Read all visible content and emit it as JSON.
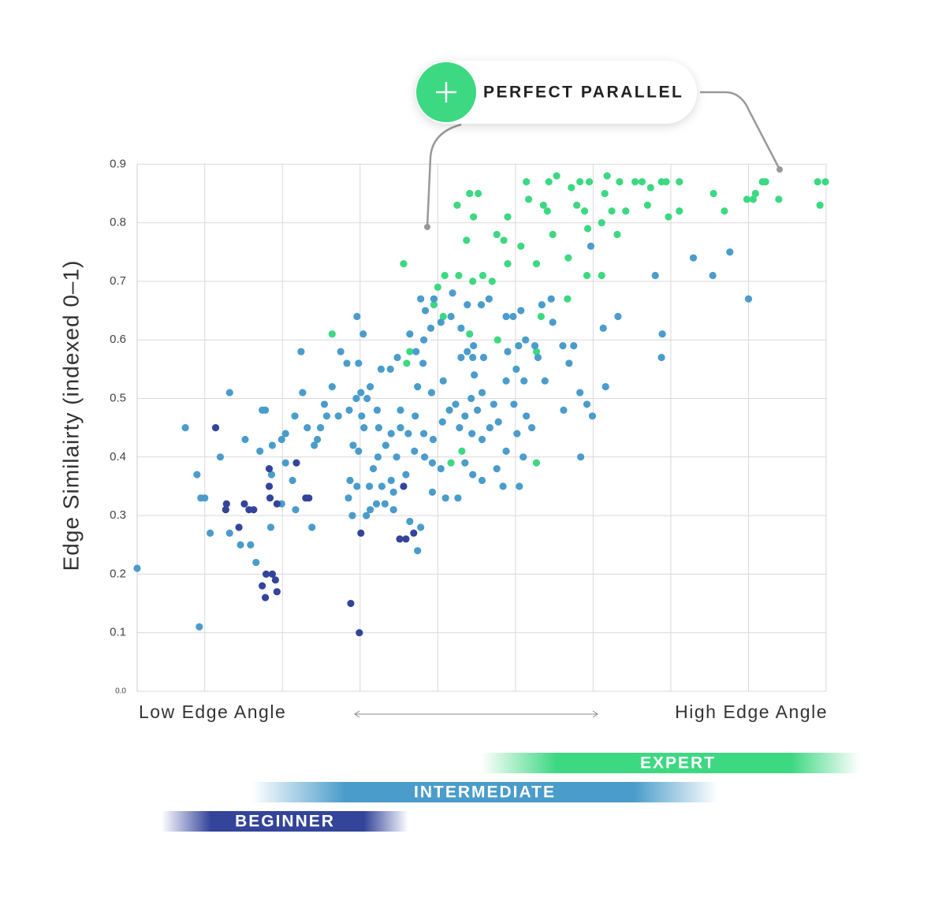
{
  "chart_data": {
    "type": "scatter",
    "y_label": "Edge Similairty (indexed 0–1)",
    "x_label_low": "Low Edge Angle",
    "x_label_high": "High Edge Angle",
    "annotation": "PERFECT PARALLEL",
    "xlim": [
      -0.87,
      8
    ],
    "xticks": [
      0,
      1,
      2,
      3,
      4,
      5,
      6,
      7,
      8
    ],
    "ylim": [
      0,
      0.9
    ],
    "yticks": [
      {
        "value": 0,
        "label": "0.0"
      },
      0.1,
      0.2,
      0.3,
      0.4,
      0.5,
      0.6,
      0.7,
      0.8,
      0.9
    ],
    "grid": true,
    "series": [
      {
        "name": "EXPERT",
        "color": "#3dd882",
        "x": [
          3.41,
          3.52,
          4.14,
          4.43,
          4.53,
          4.72,
          4.83,
          4.95,
          5.18,
          5.34,
          5.54,
          5.63,
          5.74,
          5.88,
          5.94,
          6.11,
          6.55,
          6.98,
          7.09,
          7.18,
          7.22,
          7.39,
          7.89,
          7.99,
          7.92,
          3.25,
          3.46,
          3.9,
          4.17,
          4.36,
          4.41,
          4.79,
          4.89,
          5.15,
          5.24,
          5.42,
          5.7,
          5.97,
          6.11,
          6.69,
          7.06,
          3.85,
          3.76,
          3.37,
          3.58,
          3.9,
          4.07,
          4.27,
          4.48,
          4.68,
          4.93,
          5.11,
          5.31,
          4.92,
          5.11,
          3.09,
          3.27,
          3.45,
          3.7,
          2.56,
          3.0,
          2.95,
          3.07,
          2.64,
          2.6,
          1.64,
          3.31,
          3.17,
          4.27,
          3.77,
          4.67,
          4.33,
          4.27,
          3.41
        ],
        "values": [
          0.85,
          0.85,
          0.87,
          0.87,
          0.88,
          0.86,
          0.87,
          0.87,
          0.88,
          0.87,
          0.87,
          0.87,
          0.86,
          0.87,
          0.87,
          0.87,
          0.85,
          0.84,
          0.85,
          0.87,
          0.87,
          0.84,
          0.87,
          0.87,
          0.83,
          0.83,
          0.81,
          0.81,
          0.84,
          0.83,
          0.82,
          0.83,
          0.82,
          0.85,
          0.82,
          0.82,
          0.83,
          0.81,
          0.82,
          0.82,
          0.84,
          0.77,
          0.78,
          0.77,
          0.71,
          0.73,
          0.76,
          0.73,
          0.78,
          0.74,
          0.79,
          0.8,
          0.78,
          0.71,
          0.71,
          0.71,
          0.71,
          0.7,
          0.7,
          0.73,
          0.69,
          0.66,
          0.64,
          0.58,
          0.56,
          0.61,
          0.41,
          0.39,
          0.39,
          0.6,
          0.67,
          0.64,
          0.58,
          0.61
        ]
      },
      {
        "name": "INTERMEDIATE",
        "color": "#4a9ccb",
        "x": [
          4.97,
          6.29,
          6.76,
          5.8,
          6.54,
          7.0,
          5.89,
          5.88,
          5.13,
          5.32,
          5.16,
          4.84,
          4.99,
          4.92,
          4.62,
          4.38,
          4.29,
          4.11,
          4.01,
          3.88,
          3.98,
          3.72,
          3.57,
          3.47,
          3.45,
          3.38,
          3.3,
          3.17,
          3.04,
          2.91,
          2.82,
          2.72,
          2.64,
          2.48,
          2.39,
          2.27,
          2.13,
          2.01,
          1.95,
          1.86,
          1.72,
          1.57,
          1.45,
          1.32,
          1.16,
          1.04,
          0.99,
          0.87,
          0.74,
          0.78,
          0.52,
          0.32,
          0.2,
          -0.25,
          -0.1,
          -0.05,
          0.0,
          0.07,
          -0.07,
          -0.87,
          0.46,
          0.59,
          0.66,
          0.85,
          0.99,
          1.04,
          1.13,
          1.26,
          1.24,
          1.41,
          1.49,
          1.54,
          1.64,
          1.75,
          1.83,
          1.96,
          2.04,
          1.91,
          1.98,
          1.87,
          1.85,
          1.9,
          2.08,
          2.21,
          2.32,
          2.43,
          2.43,
          2.28,
          2.17,
          2.23,
          2.33,
          2.4,
          2.52,
          2.62,
          2.71,
          2.82,
          2.94,
          3.06,
          3.15,
          3.23,
          3.28,
          3.35,
          3.44,
          3.57,
          3.67,
          3.78,
          3.88,
          4.02,
          4.14,
          4.21,
          3.76,
          3.57,
          3.45,
          3.35,
          3.26,
          3.1,
          2.93,
          2.78,
          2.74,
          2.59,
          2.4,
          2.47,
          2.7,
          2.83,
          2.74,
          2.92,
          3.07,
          3.3,
          3.46,
          3.59,
          3.9,
          4.04,
          4.07,
          4.13,
          4.25,
          4.34,
          4.48,
          4.61,
          4.69,
          4.75,
          4.46,
          4.83,
          3.19,
          3.38,
          3.56,
          3.66,
          3.88,
          3.97,
          3.43,
          3.51,
          2.09,
          2.22,
          2.05,
          1.98,
          2.02,
          2.24,
          2.52,
          2.81,
          2.84,
          2.95,
          2.78,
          1.96,
          2.12,
          2.64,
          2.93,
          3.04,
          3.84,
          4.05,
          4.1,
          2.13,
          0.71,
          0.86,
          1.17,
          1.38,
          0.32
        ],
        "values": [
          0.76,
          0.74,
          0.75,
          0.71,
          0.71,
          0.67,
          0.61,
          0.57,
          0.62,
          0.64,
          0.52,
          0.4,
          0.47,
          0.49,
          0.48,
          0.53,
          0.57,
          0.53,
          0.55,
          0.53,
          0.49,
          0.49,
          0.51,
          0.54,
          0.57,
          0.58,
          0.62,
          0.64,
          0.63,
          0.62,
          0.6,
          0.58,
          0.61,
          0.57,
          0.55,
          0.55,
          0.52,
          0.51,
          0.5,
          0.48,
          0.47,
          0.47,
          0.43,
          0.45,
          0.47,
          0.44,
          0.43,
          0.42,
          0.48,
          0.48,
          0.43,
          0.51,
          0.4,
          0.45,
          0.37,
          0.33,
          0.33,
          0.27,
          0.11,
          0.21,
          0.25,
          0.25,
          0.22,
          0.28,
          0.32,
          0.39,
          0.36,
          0.51,
          0.58,
          0.42,
          0.45,
          0.49,
          0.52,
          0.58,
          0.56,
          0.64,
          0.61,
          0.42,
          0.41,
          0.36,
          0.33,
          0.3,
          0.3,
          0.32,
          0.32,
          0.31,
          0.34,
          0.35,
          0.38,
          0.4,
          0.42,
          0.44,
          0.45,
          0.44,
          0.47,
          0.44,
          0.43,
          0.46,
          0.48,
          0.49,
          0.45,
          0.47,
          0.44,
          0.43,
          0.45,
          0.46,
          0.41,
          0.44,
          0.47,
          0.45,
          0.38,
          0.36,
          0.37,
          0.39,
          0.33,
          0.33,
          0.34,
          0.28,
          0.24,
          0.37,
          0.36,
          0.4,
          0.41,
          0.4,
          0.52,
          0.51,
          0.53,
          0.57,
          0.59,
          0.57,
          0.58,
          0.59,
          0.65,
          0.6,
          0.59,
          0.66,
          0.63,
          0.59,
          0.56,
          0.59,
          0.67,
          0.51,
          0.68,
          0.66,
          0.66,
          0.67,
          0.64,
          0.64,
          0.5,
          0.48,
          0.5,
          0.48,
          0.45,
          0.56,
          0.47,
          0.45,
          0.48,
          0.56,
          0.65,
          0.67,
          0.67,
          0.35,
          0.35,
          0.29,
          0.39,
          0.38,
          0.35,
          0.35,
          0.4,
          0.31,
          0.41,
          0.37,
          0.31,
          0.28,
          0.27
        ]
      },
      {
        "name": "BEGINNER",
        "color": "#34449a",
        "x": [
          0.14,
          0.28,
          0.27,
          0.44,
          0.51,
          0.57,
          0.63,
          0.83,
          0.84,
          0.93,
          1.18,
          1.3,
          1.34,
          0.79,
          0.87,
          0.91,
          0.74,
          0.78,
          0.93,
          1.88,
          1.99,
          2.01,
          2.51,
          2.59,
          2.69,
          2.56,
          0.83
        ],
        "values": [
          0.45,
          0.32,
          0.31,
          0.28,
          0.32,
          0.31,
          0.31,
          0.35,
          0.33,
          0.32,
          0.39,
          0.33,
          0.33,
          0.2,
          0.2,
          0.19,
          0.18,
          0.16,
          0.17,
          0.15,
          0.1,
          0.27,
          0.26,
          0.26,
          0.27,
          0.35,
          0.38
        ]
      }
    ]
  }
}
